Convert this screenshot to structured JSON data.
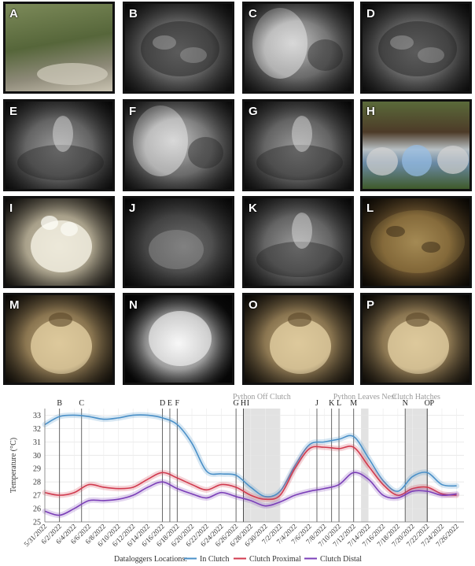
{
  "panels": [
    {
      "letter": "A",
      "scene": "outdoor-vegetation"
    },
    {
      "letter": "B",
      "scene": "night-coiled-snake"
    },
    {
      "letter": "C",
      "scene": "night-rodent"
    },
    {
      "letter": "D",
      "scene": "night-coiled-snake"
    },
    {
      "letter": "E",
      "scene": "night-snake-head"
    },
    {
      "letter": "F",
      "scene": "night-rodent"
    },
    {
      "letter": "G",
      "scene": "night-snake-head"
    },
    {
      "letter": "H",
      "scene": "outdoor-pipes"
    },
    {
      "letter": "I",
      "scene": "day-eggs"
    },
    {
      "letter": "J",
      "scene": "night-blurry"
    },
    {
      "letter": "K",
      "scene": "night-snake-head"
    },
    {
      "letter": "L",
      "scene": "day-coiled-snake"
    },
    {
      "letter": "M",
      "scene": "day-eggs-hatching"
    },
    {
      "letter": "N",
      "scene": "night-eggs"
    },
    {
      "letter": "O",
      "scene": "day-eggs-hatching"
    },
    {
      "letter": "P",
      "scene": "day-eggs-hatching"
    }
  ],
  "chart_data": {
    "type": "line",
    "ylabel": "Temperature (°C)",
    "xlabel": "",
    "ylim": [
      25,
      33.5
    ],
    "yticks": [
      25,
      26,
      27,
      28,
      29,
      30,
      31,
      32,
      33
    ],
    "xlim": [
      0,
      57
    ],
    "xtick_labels": [
      "5/31/2022",
      "6/2/2022",
      "6/4/2022",
      "6/6/2022",
      "6/8/2022",
      "6/10/2022",
      "6/12/2022",
      "6/14/2022",
      "6/16/2022",
      "6/18/2022",
      "6/20/2022",
      "6/22/2022",
      "6/24/2022",
      "6/26/2022",
      "6/28/2022",
      "6/30/2022",
      "7/2/2022",
      "7/4/2022",
      "7/6/2022",
      "7/8/2022",
      "7/10/2022",
      "7/12/2022",
      "7/14/2022",
      "7/16/2022",
      "7/18/2022",
      "7/20/2022",
      "7/22/2022",
      "7/24/2022",
      "7/26/2022"
    ],
    "grid": true,
    "legend_title": "Dataloggers Locations:",
    "legend_position": "bottom",
    "shaded_periods": [
      {
        "label": "Python Off Clutch",
        "start": "6/27/2022",
        "end": "7/2/2022"
      },
      {
        "label": "Python Leaves Nest",
        "start": "7/13/2022",
        "end": "7/14/2022"
      },
      {
        "label": "Clutch Hatches",
        "start": "7/19/2022",
        "end": "7/22/2022"
      }
    ],
    "events": [
      {
        "label": "B",
        "date": "6/2/2022"
      },
      {
        "label": "C",
        "date": "6/5/2022"
      },
      {
        "label": "D",
        "date": "6/16/2022"
      },
      {
        "label": "E",
        "date": "6/17/2022"
      },
      {
        "label": "F",
        "date": "6/18/2022"
      },
      {
        "label": "G",
        "date": "6/26/2022"
      },
      {
        "label": "H",
        "date": "6/27/2022"
      },
      {
        "label": "I",
        "date": "6/27/2022"
      },
      {
        "label": "J",
        "date": "7/7/2022"
      },
      {
        "label": "K",
        "date": "7/9/2022"
      },
      {
        "label": "L",
        "date": "7/10/2022"
      },
      {
        "label": "M",
        "date": "7/12/2022"
      },
      {
        "label": "N",
        "date": "7/19/2022"
      },
      {
        "label": "O",
        "date": "7/22/2022"
      },
      {
        "label": "P",
        "date": "7/22/2022"
      }
    ],
    "series": [
      {
        "name": "In Clutch",
        "color": "#4a90c8",
        "x": [
          "5/31/2022",
          "6/2/2022",
          "6/4/2022",
          "6/6/2022",
          "6/8/2022",
          "6/10/2022",
          "6/12/2022",
          "6/14/2022",
          "6/16/2022",
          "6/18/2022",
          "6/20/2022",
          "6/22/2022",
          "6/24/2022",
          "6/26/2022",
          "6/28/2022",
          "6/30/2022",
          "7/2/2022",
          "7/4/2022",
          "7/6/2022",
          "7/8/2022",
          "7/10/2022",
          "7/12/2022",
          "7/14/2022",
          "7/16/2022",
          "7/18/2022",
          "7/20/2022",
          "7/22/2022",
          "7/24/2022",
          "7/26/2022"
        ],
        "values": [
          32.3,
          32.9,
          33.0,
          32.9,
          32.7,
          32.8,
          33.0,
          33.0,
          32.8,
          32.3,
          30.9,
          28.8,
          28.6,
          28.5,
          27.6,
          26.9,
          27.3,
          29.2,
          30.8,
          31.0,
          31.2,
          31.4,
          29.8,
          28.1,
          27.3,
          28.4,
          28.7,
          27.8,
          27.7
        ]
      },
      {
        "name": "Clutch Proximal",
        "color": "#d13a4e",
        "x": [
          "5/31/2022",
          "6/2/2022",
          "6/4/2022",
          "6/6/2022",
          "6/8/2022",
          "6/10/2022",
          "6/12/2022",
          "6/14/2022",
          "6/16/2022",
          "6/18/2022",
          "6/20/2022",
          "6/22/2022",
          "6/24/2022",
          "6/26/2022",
          "6/28/2022",
          "6/30/2022",
          "7/2/2022",
          "7/4/2022",
          "7/6/2022",
          "7/8/2022",
          "7/10/2022",
          "7/12/2022",
          "7/14/2022",
          "7/16/2022",
          "7/18/2022",
          "7/20/2022",
          "7/22/2022",
          "7/24/2022",
          "7/26/2022"
        ],
        "values": [
          27.2,
          27.0,
          27.2,
          27.8,
          27.6,
          27.5,
          27.6,
          28.2,
          28.7,
          28.3,
          27.8,
          27.4,
          27.8,
          27.6,
          27.0,
          26.7,
          27.0,
          29.0,
          30.5,
          30.6,
          30.5,
          30.6,
          29.2,
          27.8,
          27.0,
          27.5,
          27.6,
          27.1,
          27.0
        ]
      },
      {
        "name": "Clutch Distal",
        "color": "#7b3fb8",
        "x": [
          "5/31/2022",
          "6/2/2022",
          "6/4/2022",
          "6/6/2022",
          "6/8/2022",
          "6/10/2022",
          "6/12/2022",
          "6/14/2022",
          "6/16/2022",
          "6/18/2022",
          "6/20/2022",
          "6/22/2022",
          "6/24/2022",
          "6/26/2022",
          "6/28/2022",
          "6/30/2022",
          "7/2/2022",
          "7/4/2022",
          "7/6/2022",
          "7/8/2022",
          "7/10/2022",
          "7/12/2022",
          "7/14/2022",
          "7/16/2022",
          "7/18/2022",
          "7/20/2022",
          "7/22/2022",
          "7/24/2022",
          "7/26/2022"
        ],
        "values": [
          25.8,
          25.5,
          26.0,
          26.6,
          26.6,
          26.7,
          27.0,
          27.6,
          28.0,
          27.5,
          27.1,
          26.8,
          27.2,
          26.9,
          26.6,
          26.2,
          26.5,
          27.0,
          27.3,
          27.5,
          27.8,
          28.7,
          28.2,
          27.0,
          26.8,
          27.3,
          27.3,
          27.0,
          27.1
        ]
      }
    ]
  }
}
